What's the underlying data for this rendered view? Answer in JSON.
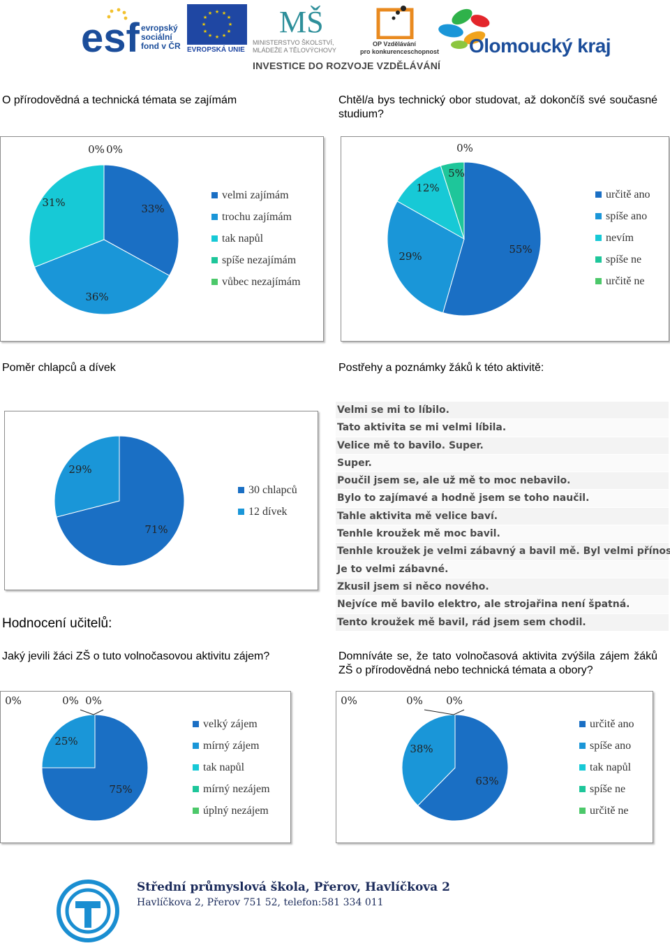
{
  "header": {
    "esf_lines": [
      "evropský",
      "sociální",
      "fond v ČR"
    ],
    "eu_label": "EVROPSKÁ UNIE",
    "msmt_lines": [
      "MINISTERSTVO ŠKOLSTVÍ,",
      "MLÁDEŽE A TĚLOVÝCHOVY"
    ],
    "op_lines": [
      "OP Vzdělávání",
      "pro konkurenceschopnost"
    ],
    "olomouc_label": "Olomoucký kraj",
    "banner": "INVESTICE DO ROZVOJE VZDĚLÁVÁNÍ"
  },
  "sections": {
    "q1_title": "O přírodovědná a technická témata se zajímám",
    "q2_title": "Chtěl/a bys technický obor studovat, až dokončíš své současné studium?",
    "q3_title": "Poměr chlapců a dívek",
    "comments_title": "Postřehy a poznámky žáků k této aktivitě:",
    "teachers_title": "Hodnocení učitelů:",
    "q4_title": "Jaký jevili žáci ZŠ o tuto volnočasovou aktivitu zájem?",
    "q5_title": "Domníváte se, že tato volnočasová aktivita zvýšila zájem žáků ZŠ o přírodovědná nebo technická témata a obory?"
  },
  "comments": [
    "Velmi se mi to líbilo.",
    "Tato aktivita se mi velmi líbila.",
    "Velice mě to bavilo. Super.",
    "Super.",
    "Poučil jsem se, ale už mě to moc nebavilo.",
    "Bylo to zajímavé a hodně jsem se toho naučil.",
    "Tahle aktivita mě velice baví.",
    "Tenhle kroužek mě moc bavil.",
    "Tenhle kroužek je velmi zábavný a bavil mě. Byl velmi přínosný.",
    "Je to velmi zábavné.",
    "Zkusil jsem si něco nového.",
    "Nejvíce mě bavilo elektro, ale strojařina není špatná.",
    "Tento kroužek mě bavil, rád jsem sem chodil."
  ],
  "footer": {
    "school": "Střední průmyslová škola, Přerov, Havlíčkova 2",
    "address": "Havlíčkova 2, Přerov 751 52, telefon:581 334 011"
  },
  "colors": {
    "c1": "#1a6fc4",
    "c2": "#1a96d8",
    "c3": "#17c9d6",
    "c4": "#1ec69a",
    "c5": "#4cc86a"
  },
  "chart_data": [
    {
      "type": "pie",
      "title": "O přírodovědná a technická témata se zajímám",
      "categories": [
        "velmi zajímám",
        "trochu zajímám",
        "tak napůl",
        "spíše nezajímám",
        "vůbec nezajímám"
      ],
      "values": [
        33,
        36,
        31,
        0,
        0
      ],
      "labels": [
        "33%",
        "36%",
        "31%",
        "0%",
        "0%"
      ]
    },
    {
      "type": "pie",
      "title": "Chtěl/a bys technický obor studovat, až dokončíš své současné studium?",
      "categories": [
        "určitě ano",
        "spíše ano",
        "nevím",
        "spíše ne",
        "určitě ne"
      ],
      "values": [
        55,
        29,
        12,
        5,
        0
      ],
      "labels": [
        "55%",
        "29%",
        "12%",
        "5%",
        "0%"
      ]
    },
    {
      "type": "pie",
      "title": "Poměr chlapců a dívek",
      "categories": [
        "30 chlapců",
        "12 dívek"
      ],
      "values": [
        71,
        29
      ],
      "labels": [
        "71%",
        "29%"
      ]
    },
    {
      "type": "pie",
      "title": "Jaký jevili žáci ZŠ o tuto volnočasovou aktivitu zájem?",
      "categories": [
        "velký zájem",
        "mírný zájem",
        "tak napůl",
        "mírný nezájem",
        "úplný nezájem"
      ],
      "values": [
        75,
        25,
        0,
        0,
        0
      ],
      "labels": [
        "75%",
        "25%",
        "0%",
        "0%",
        "0%"
      ]
    },
    {
      "type": "pie",
      "title": "Domníváte se, že tato volnočasová aktivita zvýšila zájem žáků ZŠ o přírodovědná nebo technická témata a obory?",
      "categories": [
        "určitě ano",
        "spíše ano",
        "tak napůl",
        "spíše ne",
        "určitě ne"
      ],
      "values": [
        63,
        38,
        0,
        0,
        0
      ],
      "labels": [
        "63%",
        "38%",
        "0%",
        "0%",
        "0%"
      ]
    }
  ]
}
